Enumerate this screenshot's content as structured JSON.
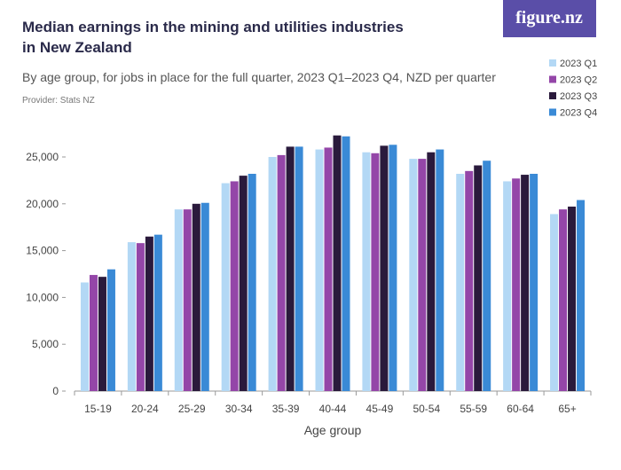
{
  "logo": "figure.nz",
  "chart_data": {
    "type": "bar",
    "title": "Median earnings in the mining and utilities industries in New Zealand",
    "subtitle": "By age group, for jobs in place for the full quarter, 2023 Q1–2023 Q4, NZD per quarter",
    "provider": "Provider: Stats NZ",
    "x_label": "Age group",
    "categories": [
      "15-19",
      "20-24",
      "25-29",
      "30-34",
      "35-39",
      "40-44",
      "45-49",
      "50-54",
      "55-59",
      "60-64",
      "65+"
    ],
    "series": [
      {
        "name": "2023 Q1",
        "color": "#b3d8f5",
        "values": [
          11600,
          15900,
          19400,
          22200,
          25000,
          25800,
          25500,
          24800,
          23200,
          22400,
          18900
        ]
      },
      {
        "name": "2023 Q2",
        "color": "#9446a8",
        "values": [
          12400,
          15800,
          19400,
          22400,
          25200,
          26000,
          25400,
          24800,
          23500,
          22700,
          19400
        ]
      },
      {
        "name": "2023 Q3",
        "color": "#2a1a3c",
        "values": [
          12200,
          16500,
          20000,
          23000,
          26100,
          27300,
          26200,
          25500,
          24100,
          23100,
          19700
        ]
      },
      {
        "name": "2023 Q4",
        "color": "#3a8ad6",
        "values": [
          13000,
          16700,
          20100,
          23200,
          26100,
          27200,
          26300,
          25800,
          24600,
          23200,
          20400
        ]
      }
    ],
    "ylim": [
      0,
      27500
    ],
    "yticks": [
      0,
      {
        "value": 5000,
        "label": "5,000"
      },
      {
        "value": 10000,
        "label": "10,000"
      },
      {
        "value": 15000,
        "label": "15,000"
      },
      {
        "value": 20000,
        "label": "20,000"
      },
      {
        "value": 25000,
        "label": "25,000"
      }
    ],
    "grid": false,
    "legend": "top-right"
  }
}
